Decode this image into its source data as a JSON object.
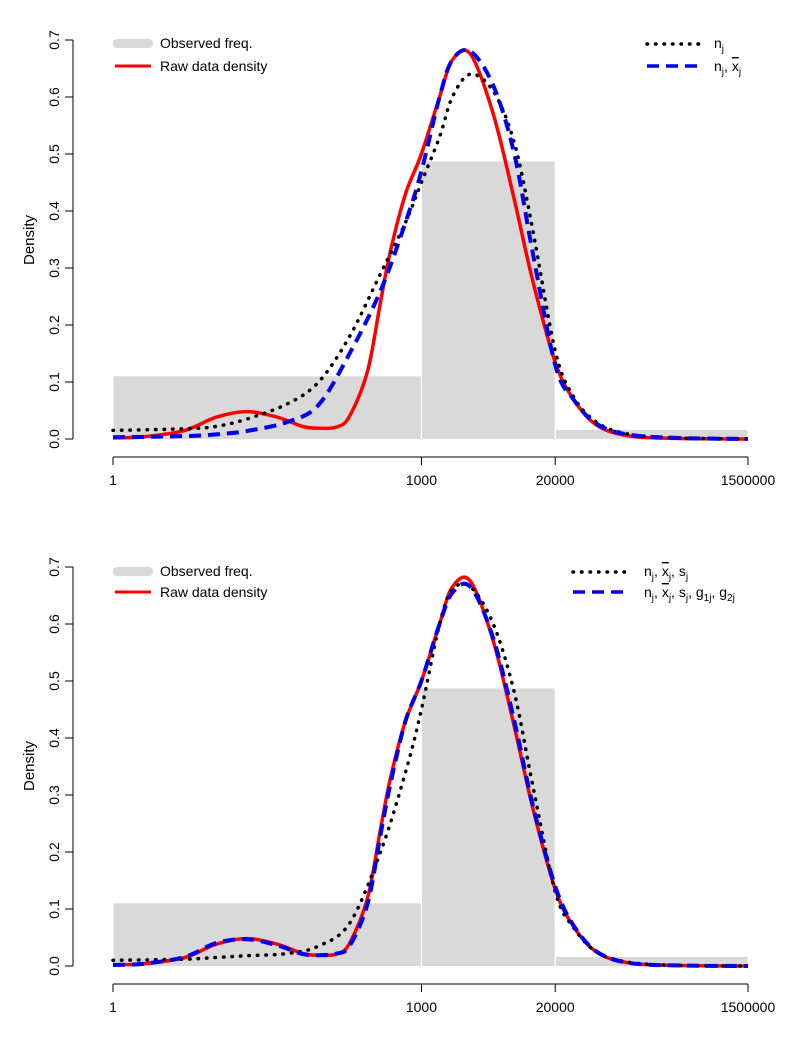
{
  "chart_data": [
    {
      "type": "line",
      "xscale": "log10",
      "xlim": [
        1,
        1500000
      ],
      "ylim": [
        0,
        0.7
      ],
      "xlabel": "",
      "ylabel": "Density",
      "xticks": [
        1,
        1000,
        20000,
        1500000
      ],
      "xtick_labels": [
        "1",
        "1000",
        "20000",
        "1500000"
      ],
      "yticks": [
        0.0,
        0.1,
        0.2,
        0.3,
        0.4,
        0.5,
        0.6,
        0.7
      ],
      "ytick_labels": [
        "0.0",
        "0.1",
        "0.2",
        "0.3",
        "0.4",
        "0.5",
        "0.6",
        "0.7"
      ],
      "grid": false,
      "histogram": {
        "name": "Observed freq.",
        "color": "#d9d9d9",
        "bins": [
          {
            "x0": 1,
            "x1": 1000,
            "density": 0.11
          },
          {
            "x0": 1000,
            "x1": 20000,
            "density": 0.487
          },
          {
            "x0": 20000,
            "x1": 1500000,
            "density": 0.016
          }
        ]
      },
      "series": [
        {
          "name": "Raw data density",
          "color": "#ff0000",
          "style": "solid",
          "x": [
            1,
            2,
            5,
            10,
            20,
            40,
            70,
            100,
            150,
            200,
            300,
            400,
            500,
            700,
            1000,
            1500,
            2000,
            3000,
            5000,
            8000,
            12000,
            20000,
            30000,
            50000,
            100000,
            300000,
            1500000
          ],
          "y": [
            0.002,
            0.004,
            0.015,
            0.038,
            0.048,
            0.038,
            0.022,
            0.019,
            0.021,
            0.04,
            0.12,
            0.24,
            0.33,
            0.43,
            0.5,
            0.6,
            0.665,
            0.675,
            0.57,
            0.42,
            0.28,
            0.135,
            0.07,
            0.025,
            0.006,
            0.001,
            0.0
          ]
        },
        {
          "name": "n_j",
          "color": "#000000",
          "style": "dotted",
          "x": [
            1,
            5,
            10,
            20,
            50,
            100,
            200,
            400,
            700,
            1000,
            1500,
            2000,
            3000,
            5000,
            8000,
            12000,
            20000,
            30000,
            50000,
            100000,
            300000,
            1500000
          ],
          "y": [
            0.015,
            0.018,
            0.022,
            0.035,
            0.062,
            0.1,
            0.18,
            0.29,
            0.38,
            0.45,
            0.53,
            0.6,
            0.64,
            0.61,
            0.52,
            0.37,
            0.155,
            0.075,
            0.03,
            0.009,
            0.002,
            0.0
          ]
        },
        {
          "name": "n_j, x̄_j",
          "color": "#0000ee",
          "style": "dashed",
          "x": [
            1,
            5,
            10,
            20,
            50,
            100,
            200,
            400,
            700,
            1000,
            1500,
            2000,
            3000,
            5000,
            8000,
            12000,
            20000,
            30000,
            50000,
            100000,
            300000,
            1500000
          ],
          "y": [
            0.003,
            0.005,
            0.008,
            0.014,
            0.03,
            0.06,
            0.15,
            0.26,
            0.38,
            0.47,
            0.6,
            0.665,
            0.68,
            0.62,
            0.5,
            0.33,
            0.13,
            0.07,
            0.027,
            0.008,
            0.002,
            0.0
          ]
        }
      ],
      "legend_left": [
        "Observed freq.",
        "Raw data density"
      ],
      "legend_right_placement": "top-right"
    },
    {
      "type": "line",
      "xscale": "log10",
      "xlim": [
        1,
        1500000
      ],
      "ylim": [
        0,
        0.7
      ],
      "xlabel": "",
      "ylabel": "Density",
      "xticks": [
        1,
        1000,
        20000,
        1500000
      ],
      "xtick_labels": [
        "1",
        "1000",
        "20000",
        "1500000"
      ],
      "yticks": [
        0.0,
        0.1,
        0.2,
        0.3,
        0.4,
        0.5,
        0.6,
        0.7
      ],
      "ytick_labels": [
        "0.0",
        "0.1",
        "0.2",
        "0.3",
        "0.4",
        "0.5",
        "0.6",
        "0.7"
      ],
      "grid": false,
      "histogram": {
        "name": "Observed freq.",
        "color": "#d9d9d9",
        "bins": [
          {
            "x0": 1,
            "x1": 1000,
            "density": 0.11
          },
          {
            "x0": 1000,
            "x1": 20000,
            "density": 0.487
          },
          {
            "x0": 20000,
            "x1": 1500000,
            "density": 0.016
          }
        ]
      },
      "series": [
        {
          "name": "Raw data density",
          "color": "#ff0000",
          "style": "solid",
          "x": [
            1,
            2,
            5,
            10,
            20,
            40,
            70,
            100,
            150,
            200,
            300,
            400,
            500,
            700,
            1000,
            1500,
            2000,
            3000,
            5000,
            8000,
            12000,
            20000,
            30000,
            50000,
            100000,
            300000,
            1500000
          ],
          "y": [
            0.002,
            0.004,
            0.015,
            0.038,
            0.048,
            0.038,
            0.022,
            0.019,
            0.021,
            0.04,
            0.12,
            0.24,
            0.33,
            0.43,
            0.5,
            0.6,
            0.665,
            0.675,
            0.57,
            0.42,
            0.28,
            0.135,
            0.07,
            0.025,
            0.006,
            0.001,
            0.0
          ]
        },
        {
          "name": "n_j, x̄_j, s_j",
          "color": "#000000",
          "style": "dotted",
          "x": [
            1,
            5,
            10,
            20,
            50,
            100,
            200,
            400,
            700,
            1000,
            1500,
            2000,
            3000,
            5000,
            8000,
            12000,
            20000,
            30000,
            50000,
            100000,
            300000,
            1500000
          ],
          "y": [
            0.01,
            0.012,
            0.015,
            0.018,
            0.022,
            0.035,
            0.075,
            0.2,
            0.34,
            0.45,
            0.6,
            0.66,
            0.665,
            0.6,
            0.48,
            0.32,
            0.13,
            0.068,
            0.025,
            0.007,
            0.001,
            0.0
          ]
        },
        {
          "name": "n_j, x̄_j, s_j, g_1j, g_2j",
          "color": "#0000ee",
          "style": "dashed",
          "x": [
            1,
            2,
            5,
            10,
            20,
            40,
            70,
            100,
            150,
            200,
            300,
            400,
            500,
            700,
            1000,
            1500,
            2000,
            3000,
            5000,
            8000,
            12000,
            20000,
            30000,
            50000,
            100000,
            300000,
            1500000
          ],
          "y": [
            0.002,
            0.004,
            0.016,
            0.04,
            0.047,
            0.036,
            0.021,
            0.019,
            0.022,
            0.035,
            0.11,
            0.23,
            0.32,
            0.43,
            0.5,
            0.6,
            0.655,
            0.665,
            0.575,
            0.43,
            0.285,
            0.14,
            0.072,
            0.026,
            0.006,
            0.001,
            0.0
          ]
        }
      ],
      "legend_left": [
        "Observed freq.",
        "Raw data density"
      ],
      "legend_right_placement": "top-right"
    }
  ]
}
